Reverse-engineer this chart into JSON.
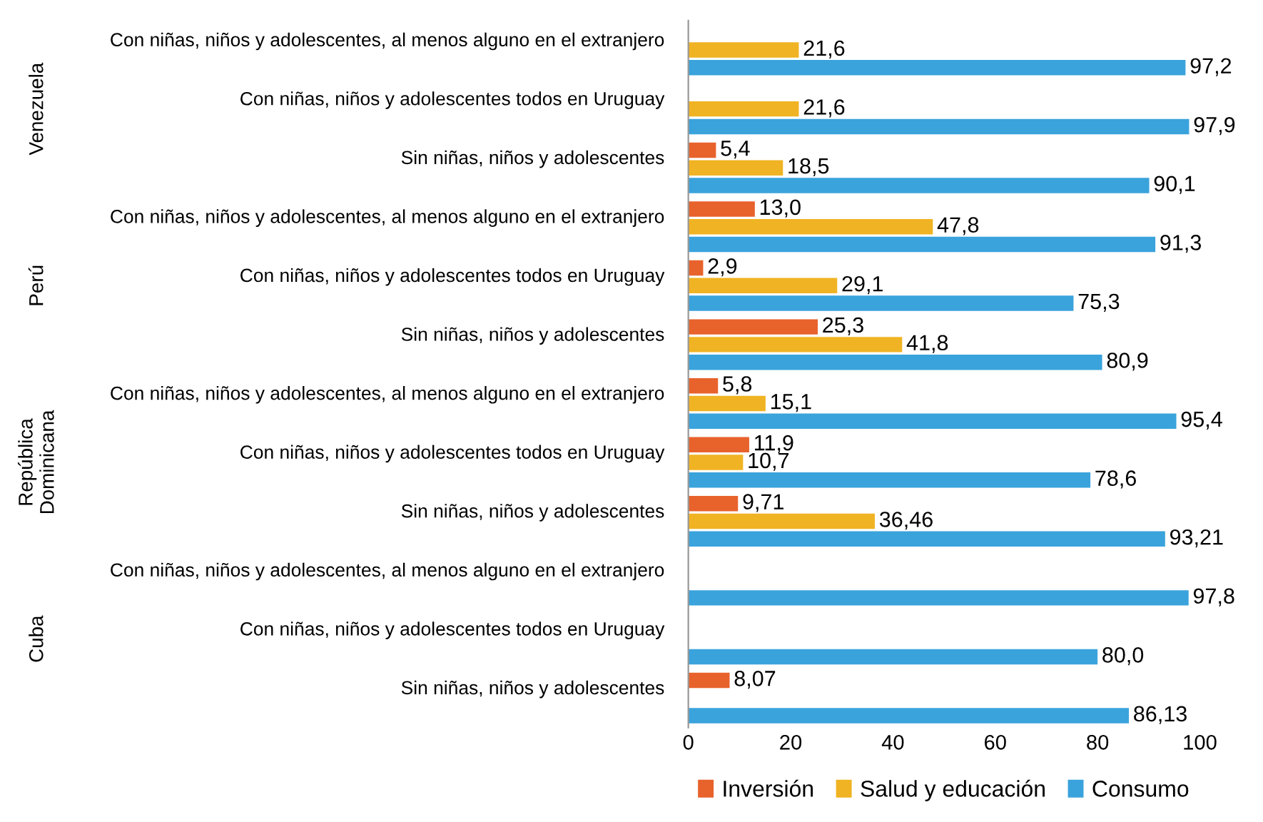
{
  "chart_data": {
    "type": "bar",
    "orientation": "horizontal",
    "categories": [
      "Con niñas, niños y adolescentes, al menos alguno en el extranjero",
      "Con niñas, niños y adolescentes todos en Uruguay",
      "Sin niñas, niños y adolescentes",
      "Con niñas, niños y adolescentes, al menos alguno en el extranjero",
      "Con niñas, niños y adolescentes todos en Uruguay",
      "Sin niñas, niños y adolescentes",
      "Con niñas, niños y adolescentes, al menos alguno en el extranjero",
      "Con niñas, niños y adolescentes todos en Uruguay",
      "Sin niñas, niños y adolescentes",
      "Con niñas, niños y adolescentes, al menos alguno en el extranjero",
      "Con niñas, niños y adolescentes todos en Uruguay",
      "Sin niñas, niños y adolescentes"
    ],
    "annotations": [
      "Venezuela",
      "Perú",
      "República\nDominicana",
      "Cuba"
    ],
    "series": [
      {
        "name": "Inversión",
        "color": "#e8622c",
        "values": [
          null,
          null,
          5.4,
          13.0,
          2.9,
          25.3,
          5.8,
          11.9,
          9.71,
          null,
          null,
          8.07
        ],
        "value_labels": [
          null,
          null,
          "5,4",
          "13,0",
          "2,9",
          "25,3",
          "5,8",
          "11,9",
          "9,71",
          null,
          null,
          "8,07"
        ]
      },
      {
        "name": "Salud y educación",
        "color": "#f0b323",
        "values": [
          21.6,
          21.6,
          18.5,
          47.8,
          29.1,
          41.8,
          15.1,
          10.7,
          36.46,
          null,
          null,
          null
        ],
        "value_labels": [
          "21,6",
          "21,6",
          "18,5",
          "47,8",
          "29,1",
          "41,8",
          "15,1",
          "10,7",
          "36,46",
          null,
          null,
          null
        ]
      },
      {
        "name": "Consumo",
        "color": "#3aa3dc",
        "values": [
          97.2,
          97.9,
          90.1,
          91.3,
          75.3,
          80.9,
          95.4,
          78.6,
          93.21,
          97.8,
          80.0,
          86.13
        ],
        "value_labels": [
          "97,2",
          "97,9",
          "90,1",
          "91,3",
          "75,3",
          "80,9",
          "95,4",
          "78,6",
          "93,21",
          "97,8",
          "80,0",
          "86,13"
        ]
      }
    ],
    "xlim": [
      0,
      100
    ],
    "xticks": [
      0,
      20,
      40,
      60,
      80,
      100
    ],
    "grid": false,
    "legend": "bottom"
  }
}
